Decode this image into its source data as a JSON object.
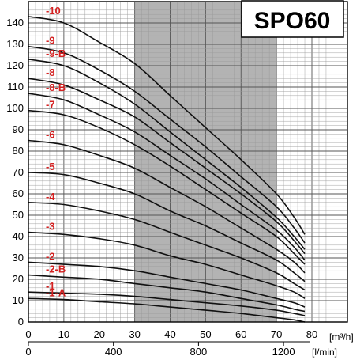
{
  "chart_data": {
    "type": "line",
    "title": "SPO60",
    "x_unit": "[m³/h]",
    "x2_unit": "[l/min]",
    "x_ticks": [
      "0",
      "10",
      "20",
      "30",
      "40",
      "50",
      "60",
      "70",
      "80"
    ],
    "x2_ticks": [
      "0",
      "400",
      "800",
      "1200"
    ],
    "y_ticks": [
      "0",
      "10",
      "20",
      "30",
      "40",
      "50",
      "60",
      "70",
      "80",
      "90",
      "100",
      "110",
      "120",
      "130",
      "140"
    ],
    "xlim": [
      0,
      80
    ],
    "ylim": [
      0,
      150
    ],
    "grid": true,
    "shaded_band_x": [
      30,
      70
    ],
    "label_color": "#d42020",
    "band_color": "#b3b3b3",
    "series": [
      {
        "name": "-10",
        "label": "-10",
        "points": [
          [
            0,
            143
          ],
          [
            10,
            140
          ],
          [
            20,
            131
          ],
          [
            30,
            121
          ],
          [
            40,
            106
          ],
          [
            50,
            91
          ],
          [
            60,
            76
          ],
          [
            70,
            60
          ],
          [
            75,
            49
          ],
          [
            78,
            41
          ]
        ]
      },
      {
        "name": "-9",
        "label": "-9",
        "points": [
          [
            0,
            129
          ],
          [
            10,
            126
          ],
          [
            20,
            118
          ],
          [
            30,
            108
          ],
          [
            40,
            95
          ],
          [
            50,
            82
          ],
          [
            60,
            68
          ],
          [
            70,
            54
          ],
          [
            75,
            44
          ],
          [
            78,
            37
          ]
        ]
      },
      {
        "name": "-9-B",
        "label": "-9-B",
        "points": [
          [
            0,
            123
          ],
          [
            10,
            120
          ],
          [
            20,
            112
          ],
          [
            30,
            102
          ],
          [
            40,
            89
          ],
          [
            50,
            76
          ],
          [
            60,
            63
          ],
          [
            70,
            49
          ],
          [
            75,
            40
          ],
          [
            78,
            34
          ]
        ]
      },
      {
        "name": "-8",
        "label": "-8",
        "points": [
          [
            0,
            114
          ],
          [
            10,
            111
          ],
          [
            20,
            104
          ],
          [
            30,
            96
          ],
          [
            40,
            84
          ],
          [
            50,
            72
          ],
          [
            60,
            60
          ],
          [
            70,
            47
          ],
          [
            75,
            38
          ],
          [
            78,
            32
          ]
        ]
      },
      {
        "name": "-8-B",
        "label": "-8-B",
        "points": [
          [
            0,
            107
          ],
          [
            10,
            104
          ],
          [
            20,
            97
          ],
          [
            30,
            89
          ],
          [
            40,
            78
          ],
          [
            50,
            67
          ],
          [
            60,
            55
          ],
          [
            70,
            43
          ],
          [
            75,
            35
          ],
          [
            78,
            29
          ]
        ]
      },
      {
        "name": "-7",
        "label": "-7",
        "points": [
          [
            0,
            99
          ],
          [
            10,
            97
          ],
          [
            20,
            91
          ],
          [
            30,
            83
          ],
          [
            40,
            73
          ],
          [
            50,
            62
          ],
          [
            60,
            51
          ],
          [
            70,
            40
          ],
          [
            75,
            32
          ],
          [
            78,
            27
          ]
        ]
      },
      {
        "name": "-6",
        "label": "-6",
        "points": [
          [
            0,
            85
          ],
          [
            10,
            83
          ],
          [
            20,
            78
          ],
          [
            30,
            72
          ],
          [
            40,
            63
          ],
          [
            50,
            54
          ],
          [
            60,
            44
          ],
          [
            70,
            34
          ],
          [
            75,
            28
          ],
          [
            78,
            23
          ]
        ]
      },
      {
        "name": "-5",
        "label": "-5",
        "points": [
          [
            0,
            70
          ],
          [
            10,
            69
          ],
          [
            20,
            65
          ],
          [
            30,
            60
          ],
          [
            40,
            52
          ],
          [
            50,
            45
          ],
          [
            60,
            37
          ],
          [
            70,
            29
          ],
          [
            75,
            23
          ],
          [
            78,
            19
          ]
        ]
      },
      {
        "name": "-4",
        "label": "-4",
        "points": [
          [
            0,
            56
          ],
          [
            10,
            55
          ],
          [
            20,
            52
          ],
          [
            30,
            48
          ],
          [
            40,
            42
          ],
          [
            50,
            36
          ],
          [
            60,
            30
          ],
          [
            70,
            23
          ],
          [
            75,
            18
          ],
          [
            78,
            15
          ]
        ]
      },
      {
        "name": "-3",
        "label": "-3",
        "points": [
          [
            0,
            42
          ],
          [
            10,
            41
          ],
          [
            20,
            39
          ],
          [
            30,
            36
          ],
          [
            40,
            31
          ],
          [
            50,
            27
          ],
          [
            60,
            22
          ],
          [
            70,
            17
          ],
          [
            75,
            14
          ],
          [
            78,
            11
          ]
        ]
      },
      {
        "name": "-2",
        "label": "-2",
        "points": [
          [
            0,
            28
          ],
          [
            10,
            27
          ],
          [
            20,
            26
          ],
          [
            30,
            24
          ],
          [
            40,
            21
          ],
          [
            50,
            18
          ],
          [
            60,
            15
          ],
          [
            70,
            11
          ],
          [
            75,
            9
          ],
          [
            78,
            7
          ]
        ]
      },
      {
        "name": "-2-B",
        "label": "-2-B",
        "points": [
          [
            0,
            22
          ],
          [
            10,
            21
          ],
          [
            20,
            20
          ],
          [
            30,
            18
          ],
          [
            40,
            16
          ],
          [
            50,
            14
          ],
          [
            60,
            11
          ],
          [
            70,
            8
          ],
          [
            75,
            6
          ],
          [
            78,
            5
          ]
        ]
      },
      {
        "name": "-1",
        "label": "-1",
        "points": [
          [
            0,
            14
          ],
          [
            10,
            13.5
          ],
          [
            20,
            13
          ],
          [
            30,
            12
          ],
          [
            40,
            10.5
          ],
          [
            50,
            9
          ],
          [
            60,
            7.5
          ],
          [
            70,
            5.5
          ],
          [
            75,
            4
          ],
          [
            78,
            3
          ]
        ]
      },
      {
        "name": "-1-A",
        "label": "-1-A",
        "points": [
          [
            0,
            11
          ],
          [
            10,
            10.5
          ],
          [
            20,
            9.5
          ],
          [
            30,
            8.5
          ],
          [
            40,
            7
          ],
          [
            50,
            5.5
          ],
          [
            60,
            4
          ],
          [
            70,
            2
          ],
          [
            75,
            1
          ],
          [
            78,
            0
          ]
        ]
      }
    ]
  }
}
